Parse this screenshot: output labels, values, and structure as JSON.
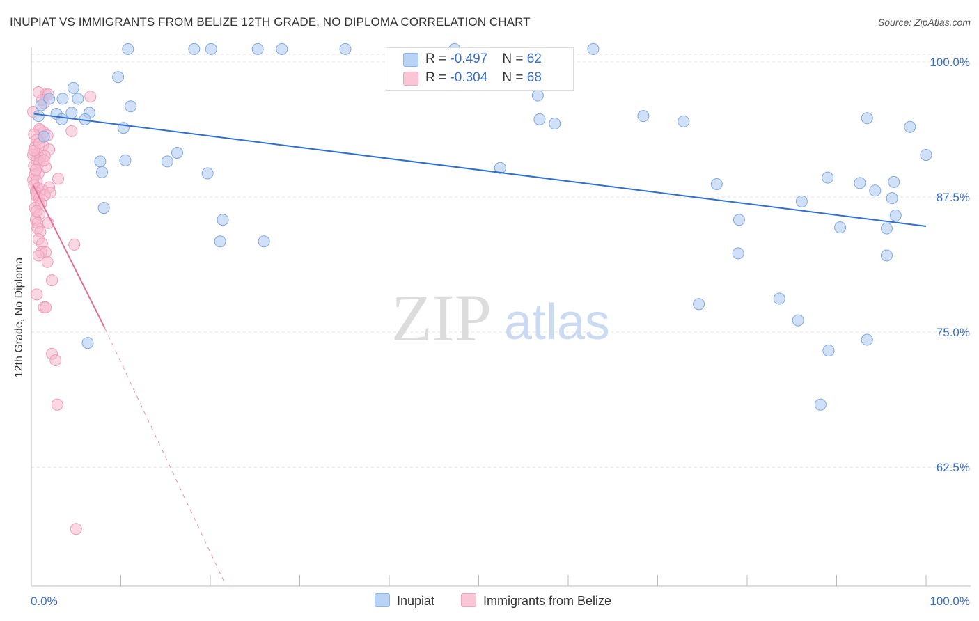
{
  "title": "INUPIAT VS IMMIGRANTS FROM BELIZE 12TH GRADE, NO DIPLOMA CORRELATION CHART",
  "source": "Source: ZipAtlas.com",
  "watermark": {
    "zip": "ZIP",
    "atlas": "atlas"
  },
  "legend": {
    "rows": [
      {
        "r_label": "R =",
        "r_value": "-0.497",
        "n_label": "N =",
        "n_value": "62"
      },
      {
        "r_label": "R =",
        "r_value": "-0.304",
        "n_label": "N =",
        "n_value": "68"
      }
    ]
  },
  "chart_data": {
    "type": "scatter",
    "title": "INUPIAT VS IMMIGRANTS FROM BELIZE 12TH GRADE, NO DIPLOMA CORRELATION CHART",
    "xlabel": "",
    "ylabel": "12th Grade, No Diploma",
    "xlim": [
      0,
      100
    ],
    "ylim": [
      51.5,
      102.0
    ],
    "x_tick_labels": [
      "0.0%",
      "100.0%"
    ],
    "y_ticks": [
      100.0,
      87.5,
      75.0,
      62.5
    ],
    "y_tick_labels": [
      "100.0%",
      "87.5%",
      "75.0%",
      "62.5%"
    ],
    "colors": {
      "inupiat": "#a9c8f0",
      "inupiat_line": "#2e6fd0",
      "belize": "#f5b8cc",
      "belize_line": "#e06f9a"
    },
    "series": [
      {
        "name": "Inupiat",
        "points": [
          [
            10.8,
            101.2
          ],
          [
            18.2,
            101.2
          ],
          [
            20.1,
            101.2
          ],
          [
            25.3,
            101.2
          ],
          [
            28.0,
            101.2
          ],
          [
            35.1,
            101.2
          ],
          [
            47.3,
            101.2
          ],
          [
            9.7,
            98.6
          ],
          [
            4.7,
            97.6
          ],
          [
            3.5,
            96.6
          ],
          [
            5.2,
            96.6
          ],
          [
            2.0,
            96.6
          ],
          [
            1.1,
            96.0
          ],
          [
            11.1,
            95.9
          ],
          [
            2.8,
            95.2
          ],
          [
            4.5,
            95.3
          ],
          [
            6.5,
            95.3
          ],
          [
            0.8,
            95.0
          ],
          [
            3.4,
            94.7
          ],
          [
            6.0,
            94.7
          ],
          [
            10.3,
            93.9
          ],
          [
            1.4,
            93.1
          ],
          [
            16.3,
            91.6
          ],
          [
            7.7,
            90.8
          ],
          [
            10.5,
            90.9
          ],
          [
            15.2,
            90.8
          ],
          [
            7.9,
            89.8
          ],
          [
            19.7,
            89.7
          ],
          [
            8.1,
            86.5
          ],
          [
            21.4,
            85.4
          ],
          [
            21.1,
            83.4
          ],
          [
            26.0,
            83.4
          ],
          [
            52.4,
            90.2
          ],
          [
            56.6,
            96.9
          ],
          [
            56.8,
            94.7
          ],
          [
            58.5,
            94.3
          ],
          [
            68.4,
            95.0
          ],
          [
            72.9,
            94.5
          ],
          [
            76.6,
            88.7
          ],
          [
            79.1,
            85.4
          ],
          [
            86.1,
            87.1
          ],
          [
            89.0,
            89.3
          ],
          [
            90.4,
            84.7
          ],
          [
            92.6,
            88.8
          ],
          [
            93.4,
            94.8
          ],
          [
            94.3,
            88.1
          ],
          [
            95.6,
            84.6
          ],
          [
            96.2,
            87.4
          ],
          [
            96.4,
            88.9
          ],
          [
            96.6,
            85.8
          ],
          [
            98.2,
            94.0
          ],
          [
            100.0,
            91.4
          ],
          [
            95.6,
            82.1
          ],
          [
            79.0,
            82.3
          ],
          [
            74.6,
            77.6
          ],
          [
            83.6,
            78.1
          ],
          [
            85.7,
            76.1
          ],
          [
            89.1,
            73.3
          ],
          [
            93.4,
            74.3
          ],
          [
            88.2,
            68.3
          ],
          [
            62.8,
            101.2
          ],
          [
            6.3,
            74.0
          ]
        ],
        "trend": {
          "x0": 0.3,
          "y0": 95.2,
          "x1": 100.0,
          "y1": 84.8
        }
      },
      {
        "name": "Immigrants from Belize",
        "points": [
          [
            0.8,
            97.2
          ],
          [
            1.4,
            96.2
          ],
          [
            1.6,
            97.0
          ],
          [
            1.9,
            97.0
          ],
          [
            6.6,
            96.8
          ],
          [
            1.0,
            93.7
          ],
          [
            1.4,
            93.5
          ],
          [
            0.9,
            93.8
          ],
          [
            0.3,
            93.3
          ],
          [
            0.6,
            92.8
          ],
          [
            4.5,
            93.6
          ],
          [
            0.4,
            92.1
          ],
          [
            1.3,
            92.3
          ],
          [
            2.0,
            91.9
          ],
          [
            0.7,
            91.5
          ],
          [
            0.2,
            91.4
          ],
          [
            0.6,
            90.9
          ],
          [
            1.0,
            91.1
          ],
          [
            1.5,
            91.3
          ],
          [
            0.3,
            90.4
          ],
          [
            0.9,
            90.7
          ],
          [
            1.6,
            90.3
          ],
          [
            0.4,
            89.6
          ],
          [
            0.8,
            89.7
          ],
          [
            0.2,
            89.1
          ],
          [
            0.6,
            89.0
          ],
          [
            3.0,
            89.2
          ],
          [
            0.3,
            88.6
          ],
          [
            0.7,
            88.3
          ],
          [
            0.5,
            88.0
          ],
          [
            1.2,
            88.2
          ],
          [
            2.0,
            88.4
          ],
          [
            0.6,
            87.6
          ],
          [
            0.9,
            87.4
          ],
          [
            1.5,
            87.7
          ],
          [
            0.8,
            86.9
          ],
          [
            0.4,
            86.5
          ],
          [
            1.1,
            86.9
          ],
          [
            0.9,
            85.9
          ],
          [
            0.5,
            85.4
          ],
          [
            0.7,
            85.1
          ],
          [
            1.9,
            85.1
          ],
          [
            0.7,
            84.6
          ],
          [
            1.0,
            84.3
          ],
          [
            0.8,
            83.6
          ],
          [
            1.2,
            83.2
          ],
          [
            4.8,
            83.1
          ],
          [
            1.1,
            82.4
          ],
          [
            1.6,
            82.4
          ],
          [
            0.8,
            82.1
          ],
          [
            1.8,
            81.5
          ],
          [
            2.3,
            79.8
          ],
          [
            0.6,
            78.5
          ],
          [
            1.4,
            77.3
          ],
          [
            1.6,
            77.3
          ],
          [
            2.3,
            73.0
          ],
          [
            2.7,
            72.4
          ],
          [
            2.9,
            68.3
          ],
          [
            5.0,
            56.8
          ],
          [
            0.2,
            95.4
          ],
          [
            1.2,
            96.5
          ],
          [
            0.3,
            91.8
          ],
          [
            0.5,
            90.0
          ],
          [
            0.9,
            92.5
          ],
          [
            1.8,
            93.2
          ],
          [
            1.4,
            90.9
          ],
          [
            0.6,
            86.2
          ],
          [
            2.1,
            87.9
          ]
        ],
        "trend": {
          "x0": 0.2,
          "y0": 88.6,
          "x1": 8.2,
          "y1": 75.4,
          "dash_x1": 21.5,
          "dash_y1": 52.0
        }
      }
    ]
  },
  "bottom_legend": [
    {
      "label": "Inupiat"
    },
    {
      "label": "Immigrants from Belize"
    }
  ]
}
